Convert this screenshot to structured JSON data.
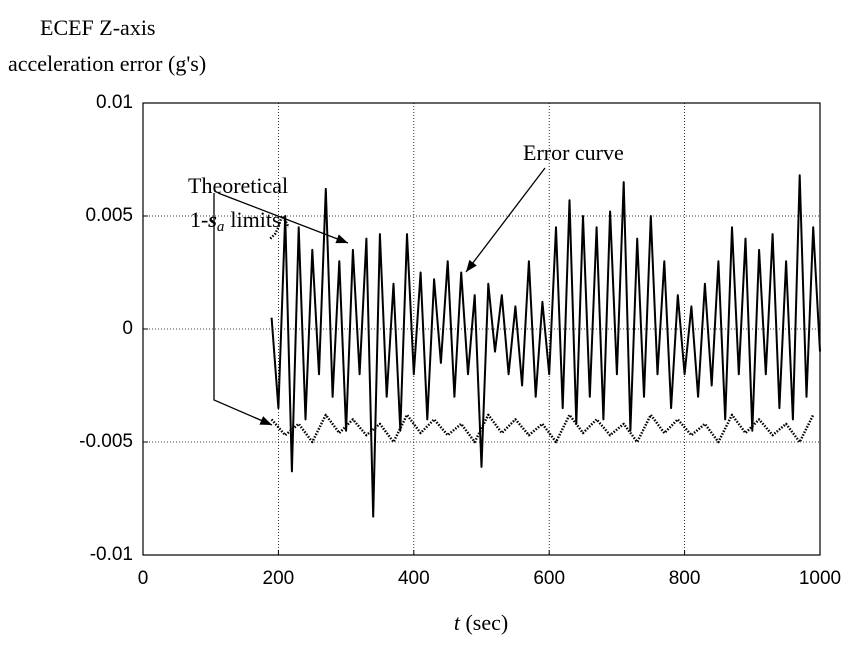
{
  "chart_data": {
    "type": "line",
    "ylabel_lines": [
      "ECEF Z-axis",
      "acceleration error (g's)"
    ],
    "xlabel_var": "t",
    "xlabel_unit": "(sec)",
    "annotations": {
      "error": "Error curve",
      "limits_line1": "Theoretical",
      "limits_prefix": "1-",
      "limits_symbol": "s",
      "limits_sub": "a",
      "limits_suffix": "limits"
    },
    "xlim": [
      0,
      1000
    ],
    "xticks": [
      0,
      200,
      400,
      600,
      800,
      1000
    ],
    "ylim": [
      -0.01,
      0.01
    ],
    "yticks": [
      {
        "value": -0.01,
        "label": "-0.01"
      },
      {
        "value": -0.005,
        "label": "-0.005"
      },
      0,
      {
        "value": 0.005,
        "label": "0.005"
      },
      {
        "value": 0.01,
        "label": "0.01"
      }
    ],
    "grid": true,
    "series": [
      {
        "color": "#000000",
        "dash": "solid",
        "x": [
          190,
          200,
          210,
          220,
          230,
          240,
          250,
          260,
          270,
          280,
          290,
          300,
          310,
          320,
          330,
          340,
          350,
          360,
          370,
          380,
          390,
          400,
          410,
          420,
          430,
          440,
          450,
          460,
          470,
          480,
          490,
          500,
          510,
          520,
          530,
          540,
          550,
          560,
          570,
          580,
          590,
          600,
          610,
          620,
          630,
          640,
          650,
          660,
          670,
          680,
          690,
          700,
          710,
          720,
          730,
          740,
          750,
          760,
          770,
          780,
          790,
          800,
          810,
          820,
          830,
          840,
          850,
          860,
          870,
          880,
          890,
          900,
          910,
          920,
          930,
          940,
          950,
          960,
          970,
          980,
          990,
          1000
        ],
        "values": [
          0.0005,
          -0.0035,
          0.005,
          -0.0063,
          0.0045,
          -0.004,
          0.0035,
          -0.002,
          0.0062,
          -0.003,
          0.003,
          -0.0045,
          0.0035,
          -0.002,
          0.004,
          -0.0083,
          0.0042,
          -0.003,
          0.002,
          -0.0045,
          0.0042,
          -0.002,
          0.0025,
          -0.004,
          0.0022,
          -0.0015,
          0.003,
          -0.003,
          0.0025,
          -0.002,
          0.0015,
          -0.0061,
          0.002,
          -0.001,
          0.0015,
          -0.002,
          0.001,
          -0.0025,
          0.003,
          -0.003,
          0.0012,
          -0.002,
          0.0045,
          -0.0035,
          0.0057,
          -0.0042,
          0.005,
          -0.003,
          0.0045,
          -0.004,
          0.0052,
          -0.002,
          0.0065,
          -0.0045,
          0.004,
          -0.003,
          0.005,
          -0.002,
          0.003,
          -0.0035,
          0.0015,
          -0.002,
          0.001,
          -0.003,
          0.002,
          -0.0025,
          0.003,
          -0.004,
          0.0045,
          -0.002,
          0.004,
          -0.0045,
          0.0035,
          -0.002,
          0.0042,
          -0.0035,
          0.003,
          -0.004,
          0.0068,
          -0.003,
          0.0045,
          -0.001
        ]
      },
      {
        "color": "#000000",
        "dash": "dotted",
        "x": [
          188,
          195,
          200,
          205,
          210,
          215
        ],
        "values": [
          0.004,
          0.0042,
          0.0045,
          0.005,
          0.0048,
          0.0045
        ]
      },
      {
        "color": "#000000",
        "dash": "dotted",
        "x": [
          190,
          210,
          230,
          250,
          270,
          290,
          310,
          330,
          350,
          370,
          390,
          410,
          430,
          450,
          470,
          490,
          510,
          530,
          550,
          570,
          590,
          610,
          630,
          650,
          670,
          690,
          710,
          730,
          750,
          770,
          790,
          810,
          830,
          850,
          870,
          890,
          910,
          930,
          950,
          970,
          990
        ],
        "values": [
          -0.004,
          -0.0047,
          -0.0042,
          -0.005,
          -0.0038,
          -0.0046,
          -0.004,
          -0.0047,
          -0.0042,
          -0.005,
          -0.0038,
          -0.0046,
          -0.004,
          -0.0047,
          -0.0042,
          -0.005,
          -0.0038,
          -0.0046,
          -0.004,
          -0.0047,
          -0.0042,
          -0.005,
          -0.0038,
          -0.0046,
          -0.004,
          -0.0047,
          -0.0042,
          -0.005,
          -0.0038,
          -0.0046,
          -0.004,
          -0.0047,
          -0.0042,
          -0.005,
          -0.0038,
          -0.0046,
          -0.004,
          -0.0047,
          -0.0042,
          -0.005,
          -0.0038
        ]
      }
    ]
  }
}
